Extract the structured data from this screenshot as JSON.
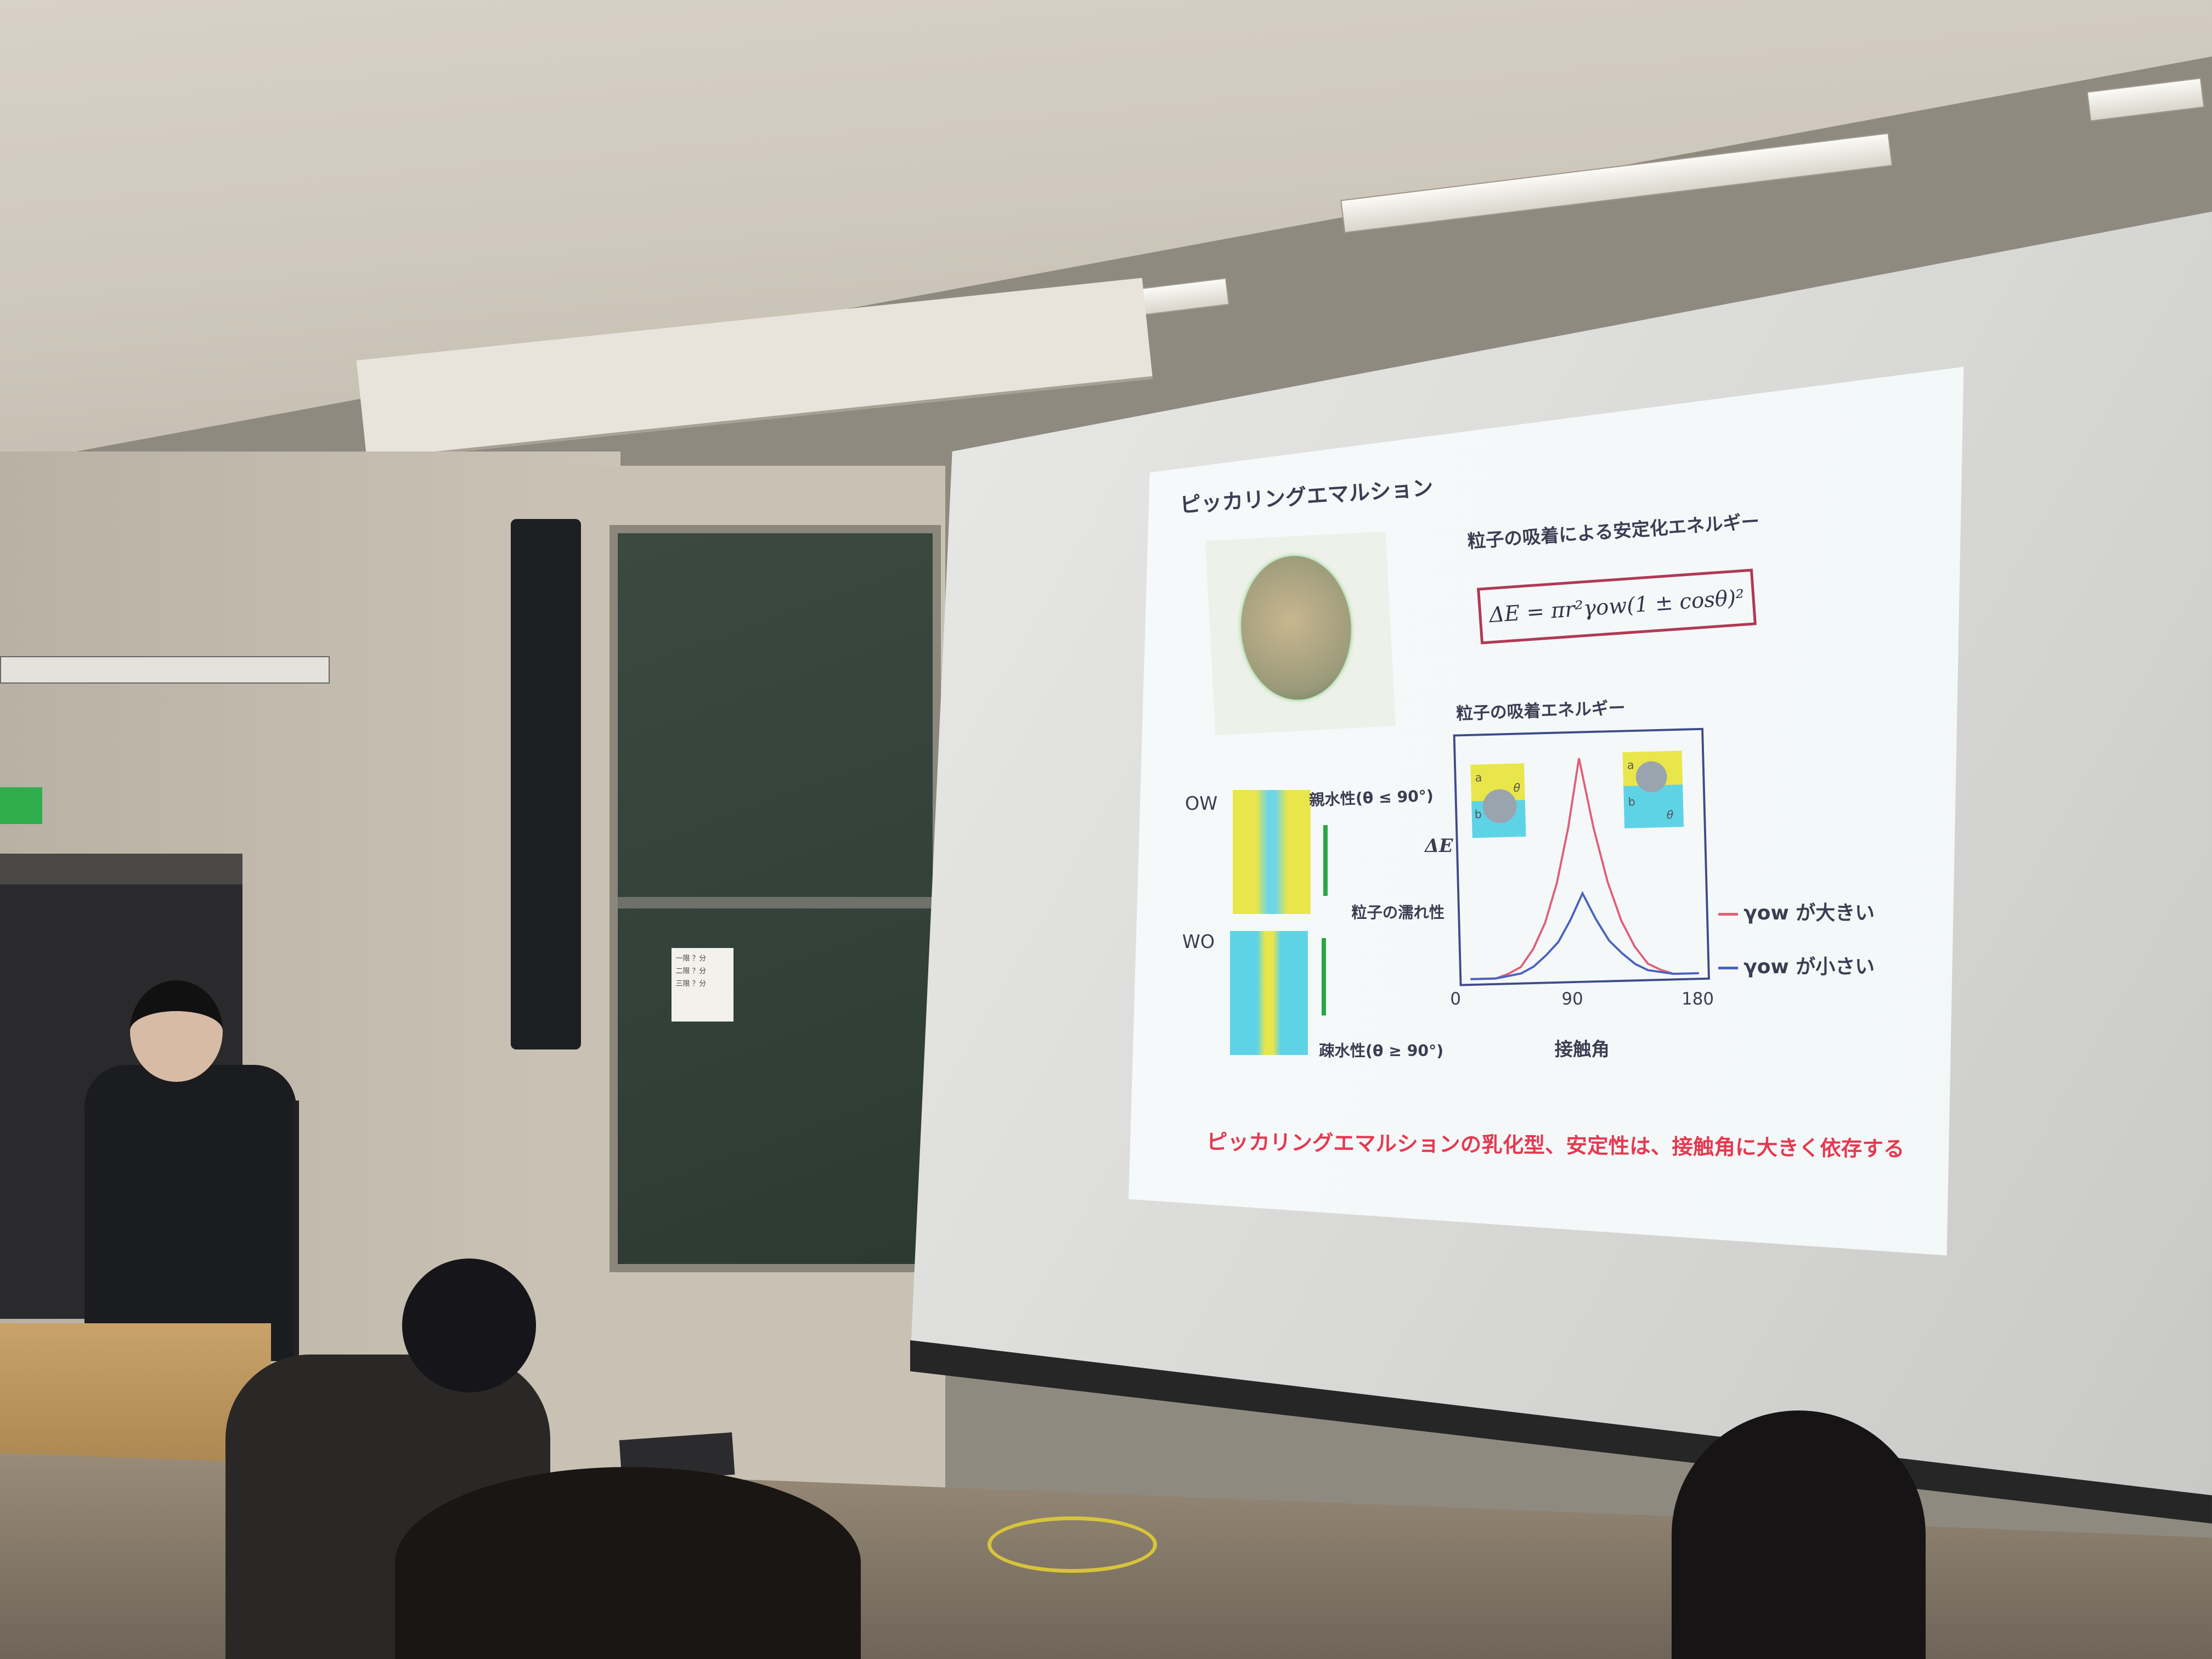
{
  "slide": {
    "title": "ピッカリングエマルション",
    "energy_heading": "粒子の吸着による安定化エネルギー",
    "formula": "ΔE = πr²γow(1 ± cosθ)²",
    "ow_label": "OW",
    "wo_label": "WO",
    "hydrophilic_label": "親水性(θ ≤ 90°)",
    "wettability_label": "粒子の濡れ性",
    "hydrophobic_label": "疎水性(θ ≥ 90°)",
    "inset_labels": {
      "a": "a",
      "b": "b",
      "theta": "θ"
    },
    "conclusion": "ピッカリングエマルションの乳化型、安定性は、接触角に大きく依存する"
  },
  "chart_data": {
    "type": "line",
    "title": "粒子の吸着エネルギー",
    "xlabel": "接触角",
    "ylabel": "ΔE",
    "x_ticks": [
      "0",
      "90",
      "180"
    ],
    "xlim": [
      0,
      180
    ],
    "ylim": [
      0,
      1.1
    ],
    "grid": false,
    "legend_placement": "right",
    "x": [
      0,
      10,
      20,
      30,
      40,
      50,
      60,
      70,
      80,
      90,
      100,
      110,
      120,
      130,
      140,
      150,
      160,
      170,
      180
    ],
    "series": [
      {
        "name": "γow が大きい",
        "color": "#e0607a",
        "values": [
          0,
          0,
          0,
          0.02,
          0.05,
          0.13,
          0.25,
          0.43,
          0.68,
          1.0,
          0.68,
          0.43,
          0.25,
          0.13,
          0.05,
          0.02,
          0,
          0,
          0
        ]
      },
      {
        "name": "γow が小さい",
        "color": "#4a62c0",
        "values": [
          0,
          0,
          0,
          0.01,
          0.02,
          0.05,
          0.1,
          0.16,
          0.26,
          0.38,
          0.26,
          0.16,
          0.1,
          0.05,
          0.02,
          0.01,
          0,
          0,
          0
        ]
      }
    ]
  },
  "notice_board": {
    "lines": [
      "一限 ？分",
      "二限 ？分",
      "三限 ？分"
    ]
  },
  "colors": {
    "slide_text": "#3b3d52",
    "accent_red": "#e53950",
    "arrow_green": "#28a745",
    "oil_yellow": "#e8e64a",
    "water_cyan": "#5fd3e6"
  }
}
